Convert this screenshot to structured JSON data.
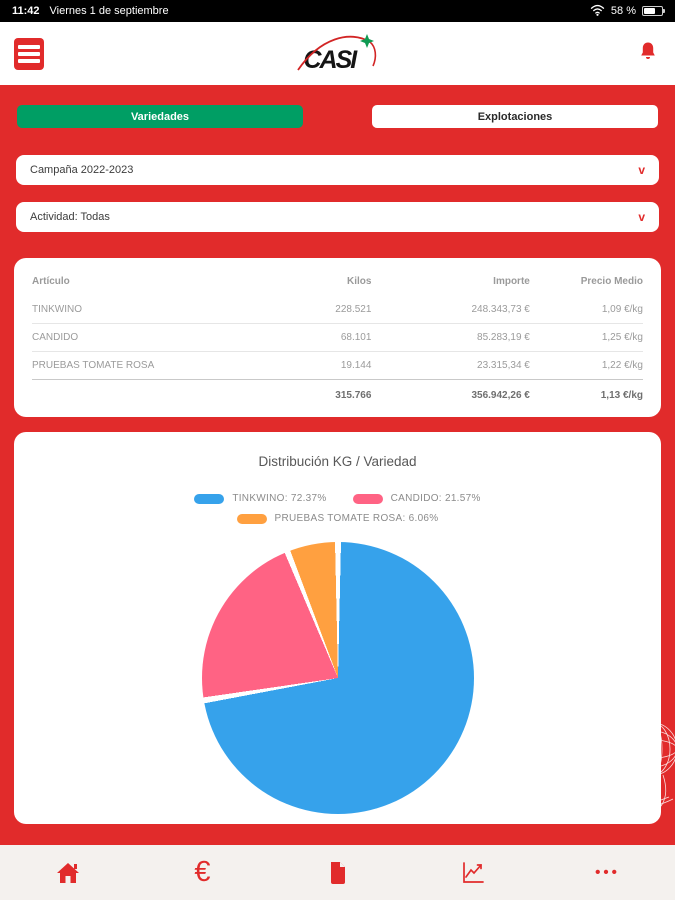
{
  "status_bar": {
    "time": "11:42",
    "date": "Viernes 1 de septiembre",
    "battery_label": "58 %"
  },
  "header": {
    "logo_text": "CASI"
  },
  "tabs": {
    "varieties": "Variedades",
    "farms": "Explotaciones"
  },
  "filters": {
    "campaign": "Campaña 2022-2023",
    "activity": "Actividad: Todas"
  },
  "icons": {
    "chevron_glyph": "v",
    "euro_glyph": "€",
    "more_glyph": "•••"
  },
  "table": {
    "columns": {
      "article": "Artículo",
      "kilos": "Kilos",
      "amount": "Importe",
      "avg_price": "Precio Medio"
    },
    "rows": [
      {
        "articulo": "TINKWINO",
        "kilos": "228.521",
        "importe": "248.343,73 €",
        "precio": "1,09 €/kg"
      },
      {
        "articulo": "CANDIDO",
        "kilos": "68.101",
        "importe": "85.283,19 €",
        "precio": "1,25 €/kg"
      },
      {
        "articulo": "PRUEBAS TOMATE ROSA",
        "kilos": "19.144",
        "importe": "23.315,34 €",
        "precio": "1,22 €/kg"
      }
    ],
    "totals": {
      "articulo": "",
      "kilos": "315.766",
      "importe": "356.942,26 €",
      "precio": "1,13 €/kg"
    }
  },
  "chart_data": {
    "type": "pie",
    "title": "Distribución KG / Variedad",
    "start_angle_deg": 0,
    "direction": "clockwise",
    "legend_position": "top",
    "slices": [
      {
        "label": "TINKWINO",
        "value_kg": 228521,
        "percent": 72.37,
        "color": "#36a2eb",
        "legend": "TINKWINO: 72.37%"
      },
      {
        "label": "CANDIDO",
        "value_kg": 68101,
        "percent": 21.57,
        "color": "#ff6384",
        "legend": "CANDIDO: 21.57%"
      },
      {
        "label": "PRUEBAS TOMATE ROSA",
        "value_kg": 19144,
        "percent": 6.06,
        "color": "#ffa040",
        "legend": "PRUEBAS TOMATE ROSA: 6.06%"
      }
    ]
  },
  "colors": {
    "primary_red": "#e12b2b",
    "tab_green": "#009e64",
    "separator": "#ffffff"
  }
}
